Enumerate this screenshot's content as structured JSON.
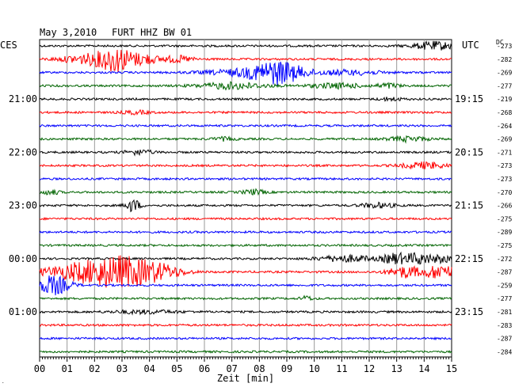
{
  "header": {
    "date": "May 3,2010",
    "station": "FURT HHZ BW 01",
    "left_zone": "CES",
    "right_zone": "UTC",
    "dc_label": "DC"
  },
  "chart_data": {
    "type": "line",
    "title": "May 3,2010  FURT HHZ BW 01",
    "xlabel": "Zeit [min]",
    "xlim": [
      0,
      15
    ],
    "x_ticks": [
      "00",
      "01",
      "02",
      "03",
      "04",
      "05",
      "06",
      "07",
      "08",
      "09",
      "10",
      "11",
      "12",
      "13",
      "14",
      "15"
    ],
    "grid": true,
    "trace_colors": [
      "#000000",
      "#ff0000",
      "#0000ff",
      "#006400"
    ],
    "left_hour_labels": [
      {
        "trace": 4,
        "label": "21:00"
      },
      {
        "trace": 8,
        "label": "22:00"
      },
      {
        "trace": 12,
        "label": "23:00"
      },
      {
        "trace": 16,
        "label": "00:00"
      },
      {
        "trace": 20,
        "label": "01:00"
      }
    ],
    "right_hour_labels": [
      {
        "trace": 4,
        "label": "19:15"
      },
      {
        "trace": 8,
        "label": "20:15"
      },
      {
        "trace": 12,
        "label": "21:15"
      },
      {
        "trace": 16,
        "label": "22:15"
      },
      {
        "trace": 20,
        "label": "23:15"
      }
    ],
    "traces": [
      {
        "dc": "-273",
        "events": [
          {
            "t": 14.4,
            "amp": 5,
            "dur": 0.8
          }
        ]
      },
      {
        "dc": "-282",
        "events": [
          {
            "t": 1.8,
            "amp": 6,
            "dur": 1.0
          },
          {
            "t": 2.8,
            "amp": 14,
            "dur": 0.6
          },
          {
            "t": 3.8,
            "amp": 6,
            "dur": 0.5
          },
          {
            "t": 5.0,
            "amp": 4,
            "dur": 0.6
          }
        ]
      },
      {
        "dc": "-269",
        "events": [
          {
            "t": 8.7,
            "amp": 13,
            "dur": 0.9
          },
          {
            "t": 7.5,
            "amp": 4,
            "dur": 1.5
          },
          {
            "t": 11.2,
            "amp": 3,
            "dur": 1.2
          }
        ]
      },
      {
        "dc": "-277",
        "events": [
          {
            "t": 7.0,
            "amp": 4,
            "dur": 1.2
          },
          {
            "t": 10.8,
            "amp": 3,
            "dur": 1.0
          },
          {
            "t": 12.7,
            "amp": 3,
            "dur": 0.4
          }
        ]
      },
      {
        "dc": "-219",
        "events": [
          {
            "t": 12.8,
            "amp": 2,
            "dur": 0.4
          }
        ]
      },
      {
        "dc": "-268",
        "events": [
          {
            "t": 3.5,
            "amp": 2,
            "dur": 0.5
          }
        ]
      },
      {
        "dc": "-264",
        "events": []
      },
      {
        "dc": "-269",
        "events": [
          {
            "t": 6.7,
            "amp": 2,
            "dur": 0.4
          },
          {
            "t": 13.4,
            "amp": 3,
            "dur": 0.7
          }
        ]
      },
      {
        "dc": "-271",
        "events": [
          {
            "t": 3.6,
            "amp": 3,
            "dur": 0.5
          }
        ]
      },
      {
        "dc": "-273",
        "events": [
          {
            "t": 14.0,
            "amp": 4,
            "dur": 0.8
          }
        ]
      },
      {
        "dc": "-273",
        "events": []
      },
      {
        "dc": "-270",
        "events": [
          {
            "t": 0.4,
            "amp": 3,
            "dur": 0.3
          },
          {
            "t": 7.8,
            "amp": 3,
            "dur": 0.4
          }
        ]
      },
      {
        "dc": "-266",
        "events": [
          {
            "t": 3.4,
            "amp": 8,
            "dur": 0.25
          },
          {
            "t": 12.3,
            "amp": 3,
            "dur": 0.6
          }
        ]
      },
      {
        "dc": "-275",
        "events": []
      },
      {
        "dc": "-289",
        "events": []
      },
      {
        "dc": "-275",
        "events": []
      },
      {
        "dc": "-272",
        "events": [
          {
            "t": 11.2,
            "amp": 4,
            "dur": 1.0
          },
          {
            "t": 12.9,
            "amp": 6,
            "dur": 0.4
          },
          {
            "t": 13.8,
            "amp": 7,
            "dur": 0.6
          },
          {
            "t": 14.7,
            "amp": 4,
            "dur": 0.3
          }
        ]
      },
      {
        "dc": "-287",
        "events": [
          {
            "t": 1.5,
            "amp": 10,
            "dur": 1.4
          },
          {
            "t": 3.1,
            "amp": 17,
            "dur": 1.2
          },
          {
            "t": 4.5,
            "amp": 6,
            "dur": 0.8
          },
          {
            "t": 13.3,
            "amp": 7,
            "dur": 0.6
          },
          {
            "t": 14.6,
            "amp": 9,
            "dur": 0.6
          }
        ]
      },
      {
        "dc": "-259",
        "events": [
          {
            "t": 0.5,
            "amp": 12,
            "dur": 0.6
          }
        ]
      },
      {
        "dc": "-277",
        "events": [
          {
            "t": 9.7,
            "amp": 3,
            "dur": 0.2
          }
        ]
      },
      {
        "dc": "-281",
        "events": [
          {
            "t": 3.8,
            "amp": 2,
            "dur": 1.2
          }
        ]
      },
      {
        "dc": "-283",
        "events": []
      },
      {
        "dc": "-287",
        "events": []
      },
      {
        "dc": "-284",
        "events": []
      }
    ]
  }
}
